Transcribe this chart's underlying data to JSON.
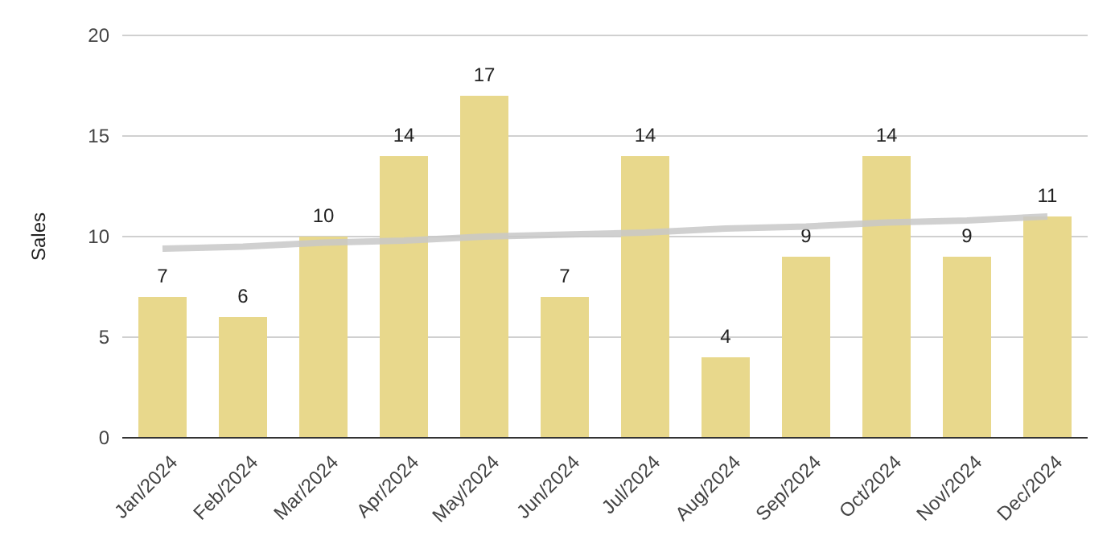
{
  "chart_data": {
    "type": "bar",
    "ylabel": "Sales",
    "categories": [
      "Jan/2024",
      "Feb/2024",
      "Mar/2024",
      "Apr/2024",
      "May/2024",
      "Jun/2024",
      "Jul/2024",
      "Aug/2024",
      "Sep/2024",
      "Oct/2024",
      "Nov/2024",
      "Dec/2024"
    ],
    "series": [
      {
        "color": "#e8d88c",
        "values": [
          7,
          6,
          10,
          14,
          17,
          7,
          14,
          4,
          9,
          14,
          9,
          11
        ],
        "value_labels": [
          "7",
          "6",
          "10",
          "14",
          "17",
          "7",
          "14",
          "4",
          "9",
          "14",
          "9",
          "11"
        ]
      },
      {
        "type": "line",
        "color": "#c8c8c8",
        "values": [
          9.4,
          9.5,
          9.7,
          9.8,
          10.0,
          10.1,
          10.2,
          10.4,
          10.5,
          10.7,
          10.8,
          11.0
        ]
      }
    ],
    "ylim": [
      0,
      20
    ],
    "yticks": [
      0,
      5,
      10,
      15,
      20
    ],
    "grid": "y"
  }
}
